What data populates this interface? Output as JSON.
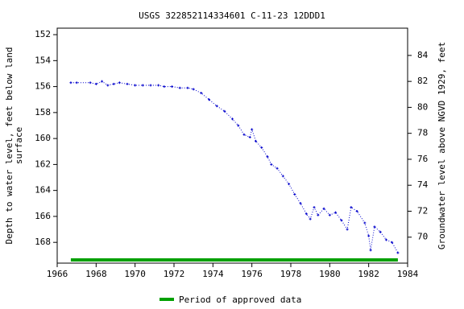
{
  "chart_data": {
    "type": "line",
    "title": "USGS 322852114334601 C-11-23 12DDD1",
    "ylabel": [
      "Depth to water level, feet below land",
      "surface"
    ],
    "y2label": "Groundwater level above NGVD 1929, feet",
    "x": [
      1966.7,
      1967.0,
      1967.7,
      1968.0,
      1968.3,
      1968.6,
      1968.9,
      1969.2,
      1969.6,
      1970.0,
      1970.4,
      1970.8,
      1971.2,
      1971.5,
      1971.9,
      1972.3,
      1972.7,
      1973.0,
      1973.4,
      1973.8,
      1974.2,
      1974.6,
      1975.0,
      1975.3,
      1975.6,
      1975.9,
      1976.0,
      1976.2,
      1976.5,
      1976.8,
      1977.0,
      1977.3,
      1977.6,
      1977.9,
      1978.2,
      1978.5,
      1978.8,
      1979.0,
      1979.2,
      1979.4,
      1979.7,
      1980.0,
      1980.3,
      1980.6,
      1980.9,
      1981.1,
      1981.4,
      1981.8,
      1982.0,
      1982.1,
      1982.3,
      1982.6,
      1982.9,
      1983.2,
      1983.5
    ],
    "series": [
      {
        "color": "#0000cc",
        "values": [
          155.7,
          155.7,
          155.7,
          155.8,
          155.6,
          155.9,
          155.8,
          155.7,
          155.8,
          155.9,
          155.9,
          155.9,
          155.9,
          156.0,
          156.0,
          156.1,
          156.1,
          156.2,
          156.5,
          157.0,
          157.5,
          157.9,
          158.5,
          159.0,
          159.7,
          159.9,
          159.3,
          160.2,
          160.7,
          161.4,
          162.0,
          162.3,
          162.9,
          163.5,
          164.3,
          165.0,
          165.8,
          166.2,
          165.3,
          165.9,
          165.4,
          165.9,
          165.7,
          166.3,
          167.0,
          165.3,
          165.6,
          166.5,
          167.5,
          168.6,
          166.8,
          167.2,
          167.8,
          168.0,
          168.8
        ]
      }
    ],
    "xlim": [
      1966,
      1984
    ],
    "xticks": [
      1966,
      1968,
      1970,
      1972,
      1974,
      1976,
      1978,
      1980,
      1982,
      1984
    ],
    "ylim": [
      169.6,
      151.5
    ],
    "yticks": [
      152,
      154,
      156,
      158,
      160,
      162,
      164,
      166,
      168
    ],
    "y2lim": [
      68.0,
      86.1
    ],
    "y2ticks": [
      70,
      72,
      74,
      76,
      78,
      80,
      82,
      84
    ],
    "approved_period": {
      "name": "Period of approved data",
      "color": "#00a000",
      "range": [
        1966.7,
        1983.5
      ]
    }
  }
}
